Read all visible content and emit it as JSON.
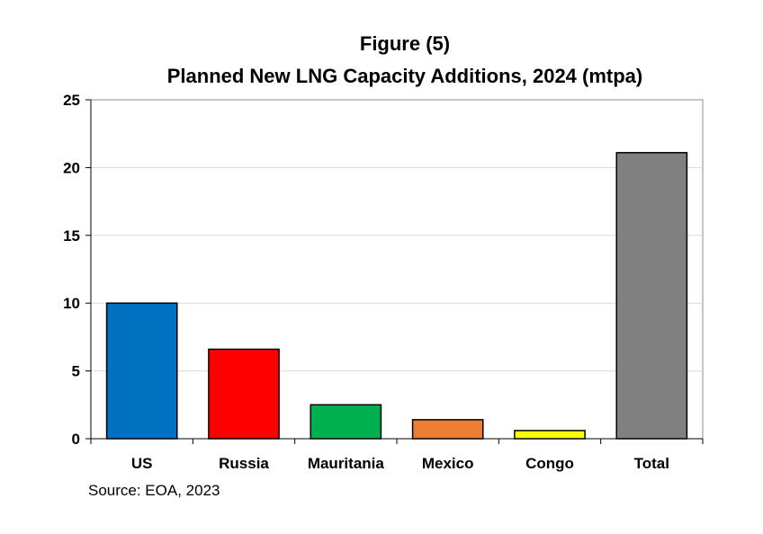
{
  "chart_data": {
    "type": "bar",
    "title": "Figure (5)",
    "subtitle": "Planned New LNG Capacity Additions, 2024 (mtpa)",
    "categories": [
      "US",
      "Russia",
      "Mauritania",
      "Mexico",
      "Congo",
      "Total"
    ],
    "values": [
      10.0,
      6.6,
      2.5,
      1.4,
      0.6,
      21.1
    ],
    "colors": [
      "#0070C0",
      "#FF0000",
      "#00B050",
      "#ED7D31",
      "#FFFF00",
      "#808080"
    ],
    "xlabel": "",
    "ylabel": "",
    "ylim": [
      0,
      25
    ],
    "yticks": [
      0,
      5,
      10,
      15,
      20,
      25
    ],
    "grid": true,
    "legend": "none"
  },
  "source": "Source: EOA, 2023"
}
